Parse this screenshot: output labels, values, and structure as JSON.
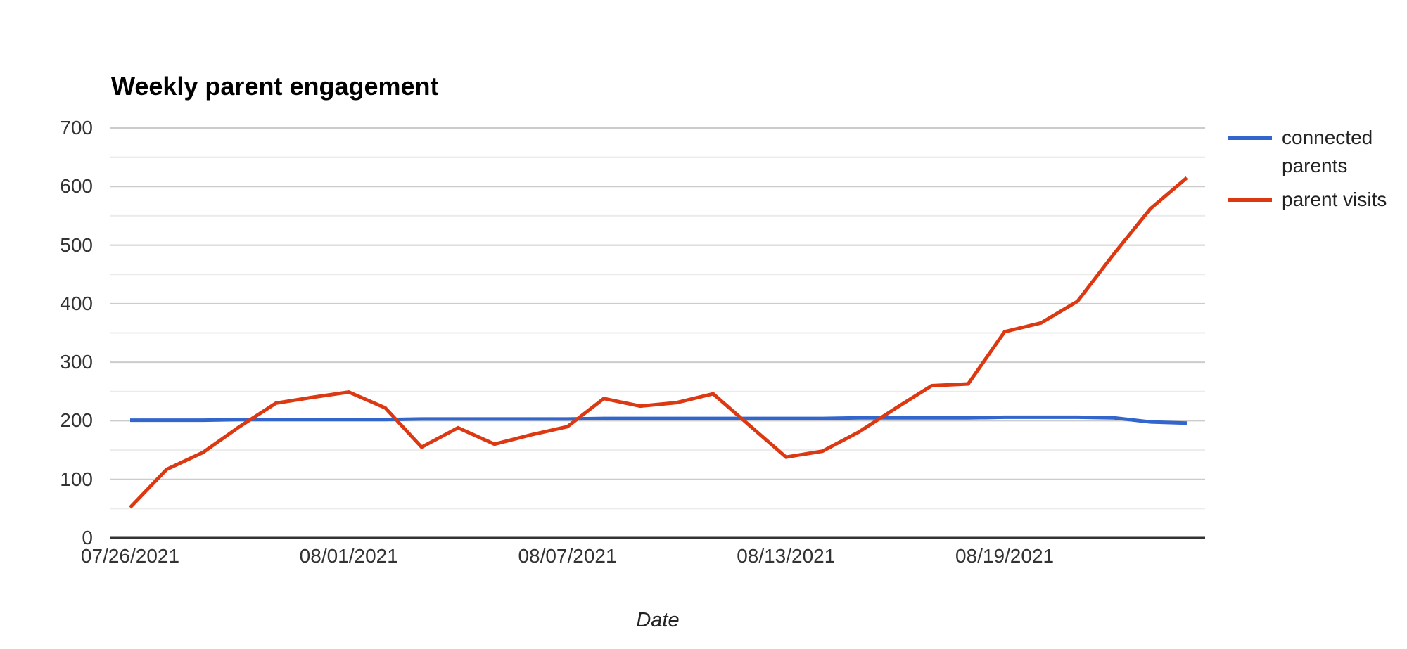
{
  "page": {
    "background": "#ffffff"
  },
  "chart": {
    "title": "Weekly parent engagement",
    "x_axis_title": "Date"
  },
  "chart_data": {
    "type": "line",
    "title": "Weekly parent engagement",
    "xlabel": "Date",
    "ylabel": "",
    "ylim": [
      0,
      700
    ],
    "grid": "horizontal",
    "y_tick_step": 100,
    "y_minor_grid_step": 50,
    "legend_position": "right",
    "y_ticks": [
      0,
      100,
      200,
      300,
      400,
      500,
      600,
      700
    ],
    "x": [
      "07/26/2021",
      "07/27/2021",
      "07/28/2021",
      "07/29/2021",
      "07/30/2021",
      "07/31/2021",
      "08/01/2021",
      "08/02/2021",
      "08/03/2021",
      "08/04/2021",
      "08/05/2021",
      "08/06/2021",
      "08/07/2021",
      "08/08/2021",
      "08/09/2021",
      "08/10/2021",
      "08/11/2021",
      "08/12/2021",
      "08/13/2021",
      "08/14/2021",
      "08/15/2021",
      "08/16/2021",
      "08/17/2021",
      "08/18/2021",
      "08/19/2021",
      "08/20/2021",
      "08/21/2021",
      "08/22/2021",
      "08/23/2021",
      "08/24/2021"
    ],
    "x_ticks": [
      {
        "index": 0,
        "label": "07/26/2021"
      },
      {
        "index": 6,
        "label": "08/01/2021"
      },
      {
        "index": 12,
        "label": "08/07/2021"
      },
      {
        "index": 18,
        "label": "08/13/2021"
      },
      {
        "index": 24,
        "label": "08/19/2021"
      }
    ],
    "series": [
      {
        "name": "connected parents",
        "color": "#3366cc",
        "values": [
          201,
          201,
          201,
          202,
          202,
          202,
          202,
          202,
          203,
          203,
          203,
          203,
          203,
          204,
          204,
          204,
          204,
          204,
          204,
          204,
          205,
          205,
          205,
          205,
          206,
          206,
          206,
          205,
          198,
          196
        ]
      },
      {
        "name": "parent visits",
        "color": "#dc3912",
        "values": [
          52,
          117,
          146,
          190,
          230,
          240,
          249,
          222,
          155,
          188,
          160,
          176,
          190,
          238,
          225,
          231,
          246,
          192,
          138,
          148,
          181,
          221,
          260,
          263,
          352,
          367,
          404,
          485,
          562,
          615
        ]
      }
    ],
    "colors": {
      "major_grid": "#cccccc",
      "minor_grid": "#ebebeb",
      "axis_line": "#333333",
      "tick_text": "#333333",
      "title_text": "#000000",
      "legend_text": "#222222"
    }
  }
}
